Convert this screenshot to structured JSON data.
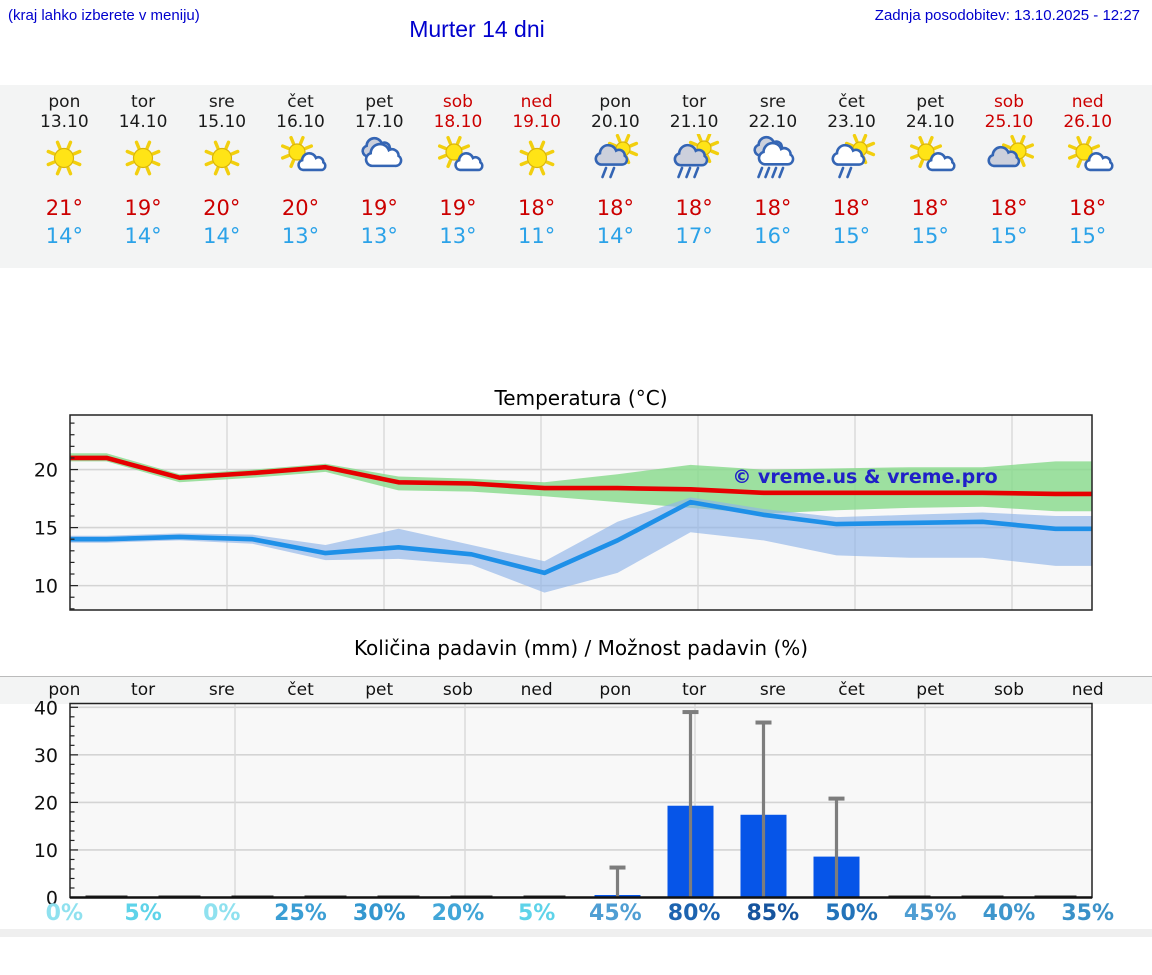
{
  "page": {
    "hint": "(kraj lahko izberete v meniju)",
    "title": "Murter 14 dni",
    "updated": "Zadnja posodobitev: 13.10.2025 - 12:27",
    "accent_blue": "#0000cd"
  },
  "forecast": {
    "tmax_color": "#cc0000",
    "tmin_color": "#2ba2e8",
    "weekend_color": "#cc0000",
    "days": [
      {
        "name": "pon",
        "date": "13.10",
        "weekend": false,
        "icon": "sunny",
        "tmax": "21°",
        "tmin": "14°"
      },
      {
        "name": "tor",
        "date": "14.10",
        "weekend": false,
        "icon": "sunny",
        "tmax": "19°",
        "tmin": "14°"
      },
      {
        "name": "sre",
        "date": "15.10",
        "weekend": false,
        "icon": "sunny",
        "tmax": "20°",
        "tmin": "14°"
      },
      {
        "name": "čet",
        "date": "16.10",
        "weekend": false,
        "icon": "mostly-sunny",
        "tmax": "20°",
        "tmin": "13°"
      },
      {
        "name": "pet",
        "date": "17.10",
        "weekend": false,
        "icon": "cloudy",
        "tmax": "19°",
        "tmin": "13°"
      },
      {
        "name": "sob",
        "date": "18.10",
        "weekend": true,
        "icon": "mostly-sunny",
        "tmax": "19°",
        "tmin": "13°"
      },
      {
        "name": "ned",
        "date": "19.10",
        "weekend": true,
        "icon": "sunny",
        "tmax": "18°",
        "tmin": "11°"
      },
      {
        "name": "pon",
        "date": "20.10",
        "weekend": false,
        "icon": "rain-sun",
        "tmax": "18°",
        "tmin": "14°"
      },
      {
        "name": "tor",
        "date": "21.10",
        "weekend": false,
        "icon": "rain-sun-heavy",
        "tmax": "18°",
        "tmin": "17°"
      },
      {
        "name": "sre",
        "date": "22.10",
        "weekend": false,
        "icon": "rain-heavy",
        "tmax": "18°",
        "tmin": "16°"
      },
      {
        "name": "čet",
        "date": "23.10",
        "weekend": false,
        "icon": "rain-sun-white",
        "tmax": "18°",
        "tmin": "15°"
      },
      {
        "name": "pet",
        "date": "24.10",
        "weekend": false,
        "icon": "mostly-sunny",
        "tmax": "18°",
        "tmin": "15°"
      },
      {
        "name": "sob",
        "date": "25.10",
        "weekend": true,
        "icon": "cloud-sun",
        "tmax": "18°",
        "tmin": "15°"
      },
      {
        "name": "ned",
        "date": "26.10",
        "weekend": true,
        "icon": "mostly-sunny",
        "tmax": "18°",
        "tmin": "15°"
      }
    ]
  },
  "chart_data": [
    {
      "type": "line",
      "title": "Temperatura (°C)",
      "categories": [
        "pon",
        "tor",
        "sre",
        "čet",
        "pet",
        "sob",
        "ned",
        "pon",
        "tor",
        "sre",
        "čet",
        "pet",
        "sob",
        "ned"
      ],
      "ylim": [
        7.9,
        24.7
      ],
      "yticks": [
        10,
        15,
        20
      ],
      "grid": true,
      "watermark": "© vreme.us & vreme.pro",
      "watermark_color": "#2020c8",
      "series": [
        {
          "name": "max temperatura",
          "color": "#e60000",
          "band_color": "#86d98a",
          "values": [
            21.0,
            19.3,
            19.7,
            20.2,
            18.9,
            18.8,
            18.4,
            18.4,
            18.3,
            18.0,
            18.0,
            18.0,
            18.0,
            17.9
          ],
          "band_upper": [
            21.4,
            19.6,
            20.0,
            20.5,
            19.4,
            19.2,
            18.9,
            19.6,
            20.4,
            20.0,
            20.1,
            20.2,
            20.2,
            20.7
          ],
          "band_lower": [
            20.7,
            18.9,
            19.3,
            19.8,
            18.2,
            18.1,
            17.7,
            17.2,
            16.7,
            16.2,
            16.5,
            16.7,
            16.8,
            16.4
          ]
        },
        {
          "name": "min temperatura",
          "color": "#1e90e8",
          "band_color": "#8fb4e8",
          "values": [
            14.0,
            14.2,
            14.0,
            12.8,
            13.3,
            12.7,
            11.1,
            13.9,
            17.2,
            16.1,
            15.3,
            15.4,
            15.5,
            14.9
          ],
          "band_upper": [
            14.3,
            14.5,
            14.4,
            13.5,
            14.9,
            13.5,
            12.1,
            15.5,
            17.6,
            16.6,
            15.9,
            16.1,
            16.3,
            16.0
          ],
          "band_lower": [
            13.7,
            13.9,
            13.6,
            12.2,
            12.3,
            11.8,
            9.4,
            11.1,
            14.6,
            13.9,
            12.6,
            12.4,
            12.4,
            11.7
          ]
        }
      ]
    },
    {
      "type": "bar",
      "title": "Količina padavin (mm) / Možnost padavin (%)",
      "categories": [
        "pon",
        "tor",
        "sre",
        "čet",
        "pet",
        "sob",
        "ned",
        "pon",
        "tor",
        "sre",
        "čet",
        "pet",
        "sob",
        "ned"
      ],
      "values": [
        0.2,
        0.2,
        0.2,
        0.2,
        0.2,
        0.2,
        0.2,
        0.5,
        19.3,
        17.4,
        8.6,
        0.2,
        0.2,
        0.2
      ],
      "whisker_max": [
        null,
        null,
        null,
        null,
        null,
        null,
        null,
        6.3,
        39.0,
        36.8,
        20.8,
        null,
        null,
        null
      ],
      "ylim": [
        0,
        40.8
      ],
      "yticks": [
        0,
        10,
        20,
        30,
        40
      ],
      "grid": true,
      "bar_color": "#0655e8",
      "trace_bar_color": "#2a2a2a",
      "whisker_color": "#7d7d7d",
      "probabilities": [
        "0%",
        "5%",
        "0%",
        "25%",
        "30%",
        "20%",
        "5%",
        "45%",
        "80%",
        "85%",
        "50%",
        "45%",
        "40%",
        "35%"
      ],
      "prob_colors": [
        "#8fe1ef",
        "#5ed3e9",
        "#8fe1ef",
        "#3b9ed4",
        "#3397cf",
        "#41a6d8",
        "#5ed3e9",
        "#4f9ed3",
        "#1d64b0",
        "#16549e",
        "#2373b9",
        "#4f9ed3",
        "#3e96cc",
        "#3a91c8"
      ]
    }
  ]
}
